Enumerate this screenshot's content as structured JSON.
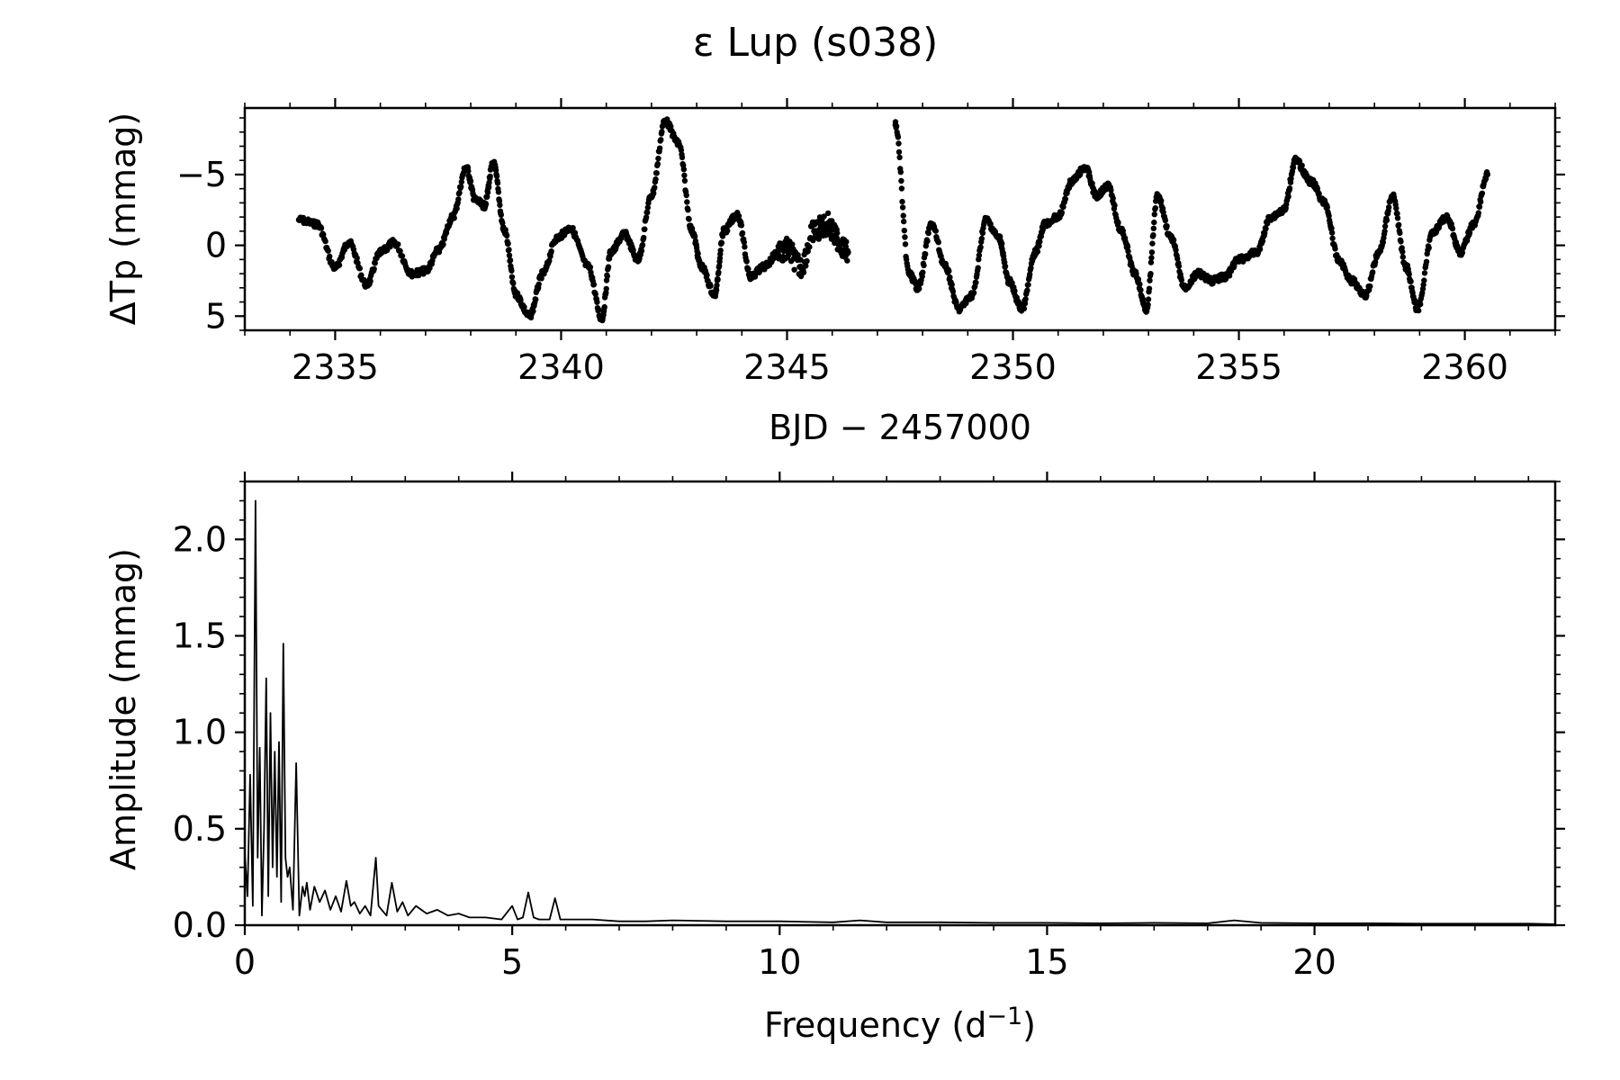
{
  "chart_data": [
    {
      "type": "scatter",
      "title": "ε Lup  (s038)",
      "xlabel": "BJD − 2457000",
      "ylabel": "ΔTp (mmag)",
      "xlim": [
        2333.0,
        2362.0
      ],
      "ylim": [
        6.0,
        -9.7
      ],
      "y_inverted": true,
      "xticks": [
        2335,
        2340,
        2345,
        2350,
        2355,
        2360
      ],
      "xtick_labels": [
        "2335",
        "2340",
        "2345",
        "2350",
        "2355",
        "2360"
      ],
      "yticks": [
        -5,
        0,
        5
      ],
      "ytick_labels": [
        "−5",
        "0",
        "5"
      ],
      "marker_color": "#000000",
      "gap": [
        2346.4,
        2347.35
      ],
      "series": [
        {
          "x": [
            2334.2,
            2334.6,
            2335.0,
            2335.3,
            2335.7,
            2336.0,
            2336.3,
            2336.7,
            2337.0,
            2337.3,
            2337.6,
            2337.9,
            2338.1,
            2338.3,
            2338.5,
            2338.75,
            2339.0,
            2339.3,
            2339.6,
            2339.9,
            2340.2,
            2340.6,
            2340.9,
            2341.1,
            2341.4,
            2341.7,
            2342.0,
            2342.3,
            2342.6,
            2342.9,
            2343.1,
            2343.4,
            2343.6,
            2343.9,
            2344.2,
            2344.5,
            2344.8,
            2345.0,
            2345.3,
            2345.6,
            2345.9,
            2346.1,
            2346.35,
            2347.4,
            2347.7,
            2347.9,
            2348.2,
            2348.5,
            2348.8,
            2349.1,
            2349.4,
            2349.7,
            2349.9,
            2350.2,
            2350.5,
            2350.7,
            2351.0,
            2351.3,
            2351.6,
            2351.85,
            2352.1,
            2352.4,
            2352.7,
            2352.95,
            2353.2,
            2353.5,
            2353.8,
            2354.1,
            2354.4,
            2354.7,
            2355.0,
            2355.4,
            2355.7,
            2356.0,
            2356.25,
            2356.6,
            2356.9,
            2357.2,
            2357.5,
            2357.8,
            2358.1,
            2358.4,
            2358.7,
            2358.95,
            2359.3,
            2359.6,
            2359.9,
            2360.2,
            2360.5
          ],
          "y": [
            -1.8,
            -1.5,
            1.6,
            -0.2,
            2.8,
            0.5,
            -0.2,
            2.0,
            1.8,
            0.3,
            -2.0,
            -5.5,
            -3.2,
            -2.8,
            -5.8,
            -1.0,
            3.5,
            5.0,
            2.0,
            -0.5,
            -1.2,
            1.5,
            5.2,
            0.5,
            -0.8,
            1.0,
            -3.5,
            -8.8,
            -7.2,
            -1.0,
            1.5,
            3.5,
            -1.0,
            -2.2,
            2.2,
            1.5,
            0.5,
            0.3,
            1.5,
            -1.0,
            -1.5,
            -0.5,
            0.5,
            -8.5,
            2.0,
            3.0,
            -1.5,
            1.5,
            4.5,
            3.5,
            -1.8,
            -0.5,
            2.5,
            4.5,
            0.5,
            -1.5,
            -2.0,
            -4.5,
            -5.5,
            -3.5,
            -4.2,
            -1.0,
            2.0,
            4.5,
            -3.5,
            -0.5,
            3.0,
            2.0,
            2.5,
            2.2,
            1.0,
            0.5,
            -2.0,
            -2.5,
            -6.0,
            -4.5,
            -3.0,
            1.0,
            2.5,
            3.5,
            0.5,
            -3.5,
            1.5,
            4.5,
            -1.0,
            -2.0,
            0.5,
            -1.5,
            -5.0
          ]
        }
      ]
    },
    {
      "type": "line",
      "title": "",
      "xlabel": "Frequency (d−1)",
      "xlabel_main": "Frequency (d",
      "xlabel_sup": "−1",
      "xlabel_end": ")",
      "ylabel": "Amplitude (mmag)",
      "xlim": [
        0,
        24.5
      ],
      "ylim": [
        0,
        2.3
      ],
      "xticks": [
        0,
        5,
        10,
        15,
        20
      ],
      "xtick_labels": [
        "0",
        "5",
        "10",
        "15",
        "20"
      ],
      "yticks": [
        0.0,
        0.5,
        1.0,
        1.5,
        2.0
      ],
      "ytick_labels": [
        "0.0",
        "0.5",
        "1.0",
        "1.5",
        "2.0"
      ],
      "line_color": "#000000",
      "series": [
        {
          "x": [
            0.0,
            0.05,
            0.1,
            0.15,
            0.2,
            0.24,
            0.28,
            0.32,
            0.36,
            0.4,
            0.44,
            0.48,
            0.52,
            0.56,
            0.6,
            0.64,
            0.68,
            0.72,
            0.76,
            0.8,
            0.84,
            0.9,
            0.96,
            1.02,
            1.08,
            1.12,
            1.16,
            1.22,
            1.3,
            1.4,
            1.5,
            1.6,
            1.7,
            1.8,
            1.9,
            1.98,
            2.05,
            2.15,
            2.25,
            2.35,
            2.45,
            2.5,
            2.56,
            2.65,
            2.75,
            2.85,
            2.95,
            3.05,
            3.2,
            3.4,
            3.6,
            3.8,
            4.0,
            4.2,
            4.5,
            4.8,
            5.0,
            5.1,
            5.2,
            5.3,
            5.4,
            5.5,
            5.7,
            5.8,
            5.9,
            6.1,
            6.5,
            7.0,
            7.5,
            8.0,
            9.0,
            10.0,
            11.0,
            11.5,
            12.0,
            13.0,
            14.0,
            15.0,
            16.0,
            17.0,
            18.0,
            18.5,
            19.0,
            20.0,
            21.0,
            22.0,
            23.0,
            24.0,
            24.5
          ],
          "y": [
            0.38,
            0.15,
            0.78,
            0.1,
            2.2,
            0.35,
            0.92,
            0.05,
            0.5,
            1.28,
            0.15,
            1.1,
            0.3,
            0.9,
            0.25,
            0.95,
            0.12,
            1.46,
            0.35,
            0.25,
            0.3,
            0.08,
            0.84,
            0.05,
            0.2,
            0.15,
            0.22,
            0.08,
            0.2,
            0.12,
            0.18,
            0.08,
            0.15,
            0.07,
            0.23,
            0.1,
            0.12,
            0.06,
            0.1,
            0.05,
            0.35,
            0.1,
            0.08,
            0.05,
            0.22,
            0.07,
            0.12,
            0.05,
            0.1,
            0.06,
            0.08,
            0.05,
            0.06,
            0.04,
            0.04,
            0.03,
            0.1,
            0.03,
            0.04,
            0.17,
            0.04,
            0.03,
            0.03,
            0.14,
            0.03,
            0.03,
            0.03,
            0.02,
            0.02,
            0.025,
            0.02,
            0.02,
            0.015,
            0.025,
            0.015,
            0.015,
            0.012,
            0.012,
            0.01,
            0.012,
            0.01,
            0.025,
            0.012,
            0.01,
            0.01,
            0.008,
            0.008,
            0.008,
            0.005
          ]
        }
      ]
    }
  ]
}
